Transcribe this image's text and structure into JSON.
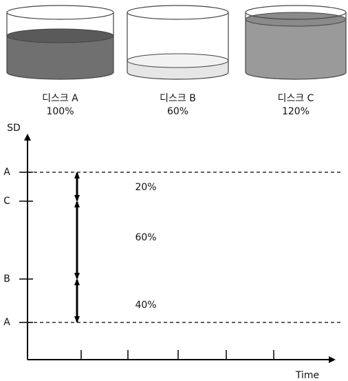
{
  "disks": [
    {
      "label": "디스크 A",
      "percent": "100%"
    },
    {
      "label": "디스크 B",
      "percent": "60%"
    },
    {
      "label": "디스크 C",
      "percent": "120%"
    }
  ],
  "axis": {
    "y_label": "SD",
    "x_label": "Time",
    "levels": [
      "A",
      "C",
      "B",
      "A"
    ]
  },
  "gaps": [
    "20%",
    "60%",
    "40%"
  ]
}
